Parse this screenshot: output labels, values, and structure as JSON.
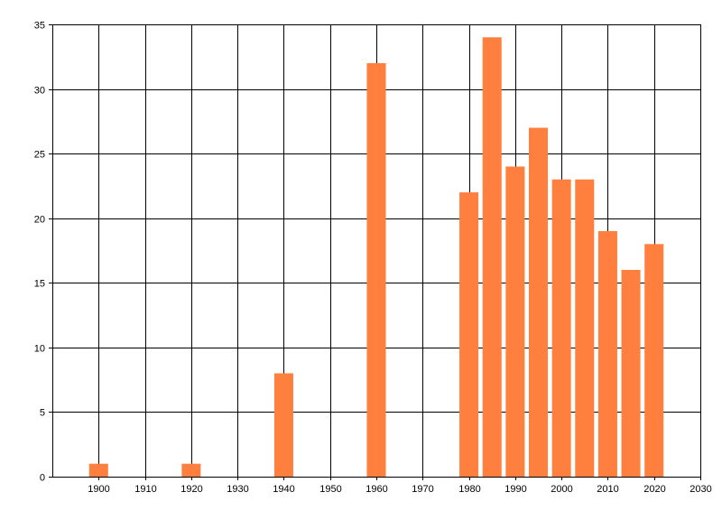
{
  "chart_data": {
    "type": "bar",
    "title": "",
    "xlabel": "",
    "ylabel": "",
    "xlim": [
      1890,
      2030
    ],
    "ylim": [
      0,
      35
    ],
    "x_ticks": [
      1900,
      1910,
      1920,
      1930,
      1940,
      1950,
      1960,
      1970,
      1980,
      1990,
      2000,
      2010,
      2020,
      2030
    ],
    "y_ticks": [
      0,
      5,
      10,
      15,
      20,
      25,
      30,
      35
    ],
    "grid": true,
    "legend": "none",
    "bar_color": "#ff7f3f",
    "x": [
      1900,
      1920,
      1940,
      1960,
      1980,
      1985,
      1990,
      1995,
      2000,
      2005,
      2010,
      2015,
      2020
    ],
    "values": [
      1,
      1,
      8,
      32,
      22,
      34,
      24,
      27,
      23,
      23,
      19,
      16,
      18
    ]
  }
}
